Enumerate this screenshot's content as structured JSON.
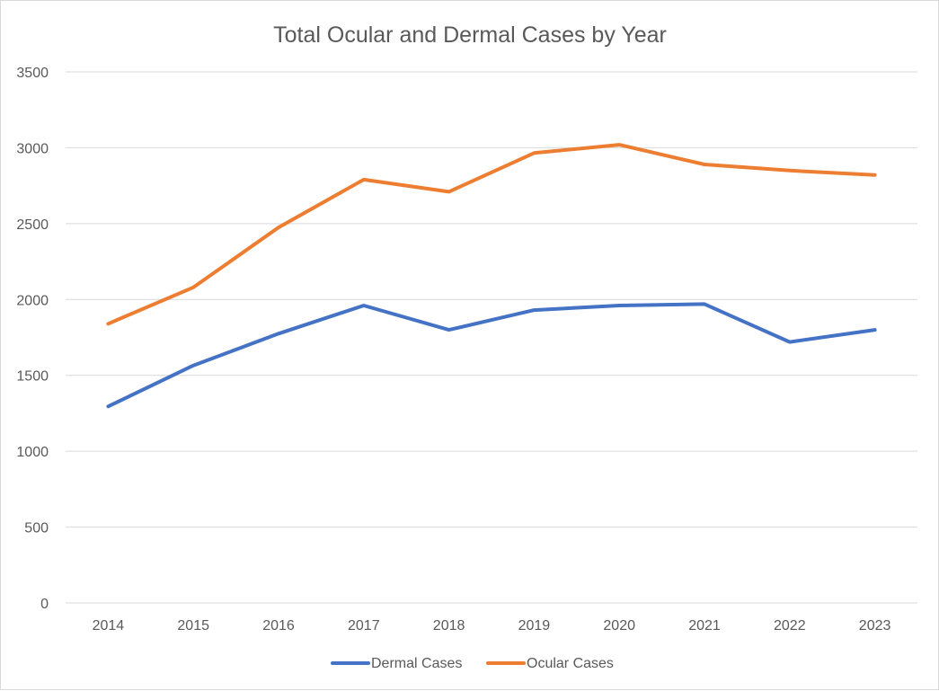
{
  "chart_data": {
    "type": "line",
    "title": "Total Ocular and Dermal Cases by Year",
    "xlabel": "",
    "ylabel": "",
    "categories": [
      "2014",
      "2015",
      "2016",
      "2017",
      "2018",
      "2019",
      "2020",
      "2021",
      "2022",
      "2023"
    ],
    "ylim": [
      0,
      3500
    ],
    "yticks": [
      "0",
      "500",
      "1000",
      "1500",
      "2000",
      "2500",
      "3000",
      "3500"
    ],
    "grid": "horizontal",
    "legend": "bottom",
    "series": [
      {
        "name": "Dermal Cases",
        "color": "#4472c4",
        "values": [
          1295,
          1565,
          1775,
          1960,
          1800,
          1930,
          1960,
          1970,
          1720,
          1800
        ]
      },
      {
        "name": "Ocular Cases",
        "color": "#ed7d31",
        "values": [
          1840,
          2080,
          2475,
          2790,
          2710,
          2965,
          3020,
          2890,
          2850,
          2820
        ]
      }
    ]
  }
}
